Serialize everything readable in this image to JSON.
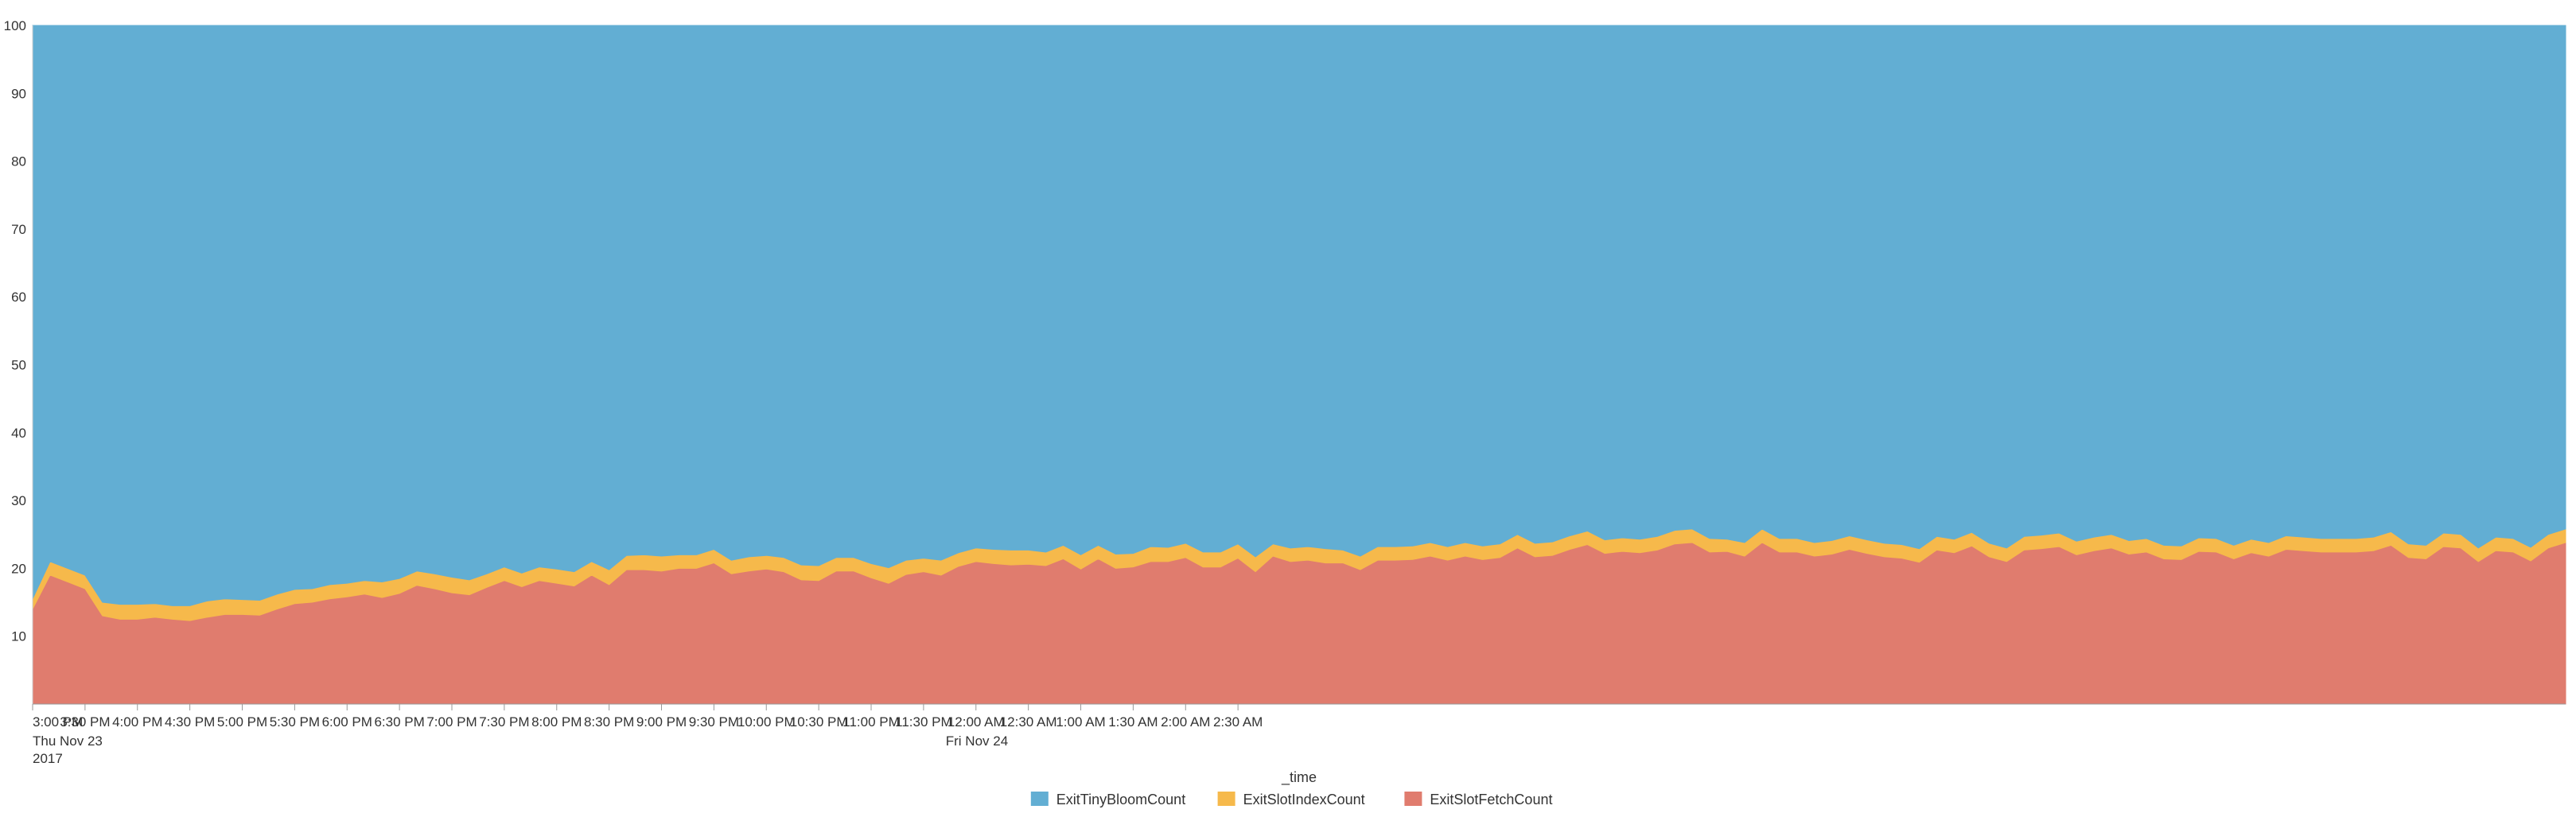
{
  "chart_data": {
    "type": "area",
    "stacked": true,
    "stack_mode": "percent",
    "title": "",
    "xlabel": "_time",
    "ylabel": "",
    "ylim": [
      0,
      100
    ],
    "yticks": [
      "10",
      "20",
      "30",
      "40",
      "50",
      "60",
      "70",
      "80",
      "90",
      "100"
    ],
    "grid": false,
    "legend_position": "bottom",
    "x_start": "3:00 PM Thu Nov 23 2017",
    "x_interval": "10 minutes",
    "xticks": [
      {
        "label": "3:00 PM",
        "sub": [
          "Thu Nov 23",
          "2017"
        ]
      },
      {
        "label": "3:30 PM",
        "sub": []
      },
      {
        "label": "4:00 PM",
        "sub": []
      },
      {
        "label": "4:30 PM",
        "sub": []
      },
      {
        "label": "5:00 PM",
        "sub": []
      },
      {
        "label": "5:30 PM",
        "sub": []
      },
      {
        "label": "6:00 PM",
        "sub": []
      },
      {
        "label": "6:30 PM",
        "sub": []
      },
      {
        "label": "7:00 PM",
        "sub": []
      },
      {
        "label": "7:30 PM",
        "sub": []
      },
      {
        "label": "8:00 PM",
        "sub": []
      },
      {
        "label": "8:30 PM",
        "sub": []
      },
      {
        "label": "9:00 PM",
        "sub": []
      },
      {
        "label": "9:30 PM",
        "sub": []
      },
      {
        "label": "10:00 PM",
        "sub": []
      },
      {
        "label": "10:30 PM",
        "sub": []
      },
      {
        "label": "11:00 PM",
        "sub": []
      },
      {
        "label": "11:30 PM",
        "sub": []
      },
      {
        "label": "12:00 AM",
        "sub": [
          "Fri Nov 24"
        ]
      },
      {
        "label": "12:30 AM",
        "sub": []
      },
      {
        "label": "1:00 AM",
        "sub": []
      },
      {
        "label": "1:30 AM",
        "sub": []
      },
      {
        "label": "2:00 AM",
        "sub": []
      },
      {
        "label": "2:30 AM",
        "sub": []
      }
    ],
    "series": [
      {
        "name": "ExitSlotFetchCount",
        "color": "#e07c6e",
        "values": [
          14,
          19,
          18,
          17,
          13,
          12.5,
          12.5,
          12.8,
          12.5,
          12.3,
          12.8,
          13.2,
          13.2,
          13.1,
          14,
          14.8,
          15,
          15.5,
          15.8,
          16.2,
          15.7,
          16.3,
          17.5,
          17,
          16.4,
          16.1,
          17.2,
          18.2,
          17.3,
          18.2,
          17.8,
          17.4,
          19,
          17.6,
          19.8,
          19.8,
          19.6,
          20,
          20,
          20.8,
          19.2,
          19.6,
          19.9,
          19.5,
          18.3,
          18.2,
          19.6,
          19.6,
          18.6,
          17.8,
          19.1,
          19.5,
          19,
          20.3,
          21,
          20.7,
          20.5,
          20.6,
          20.4,
          21.4,
          19.9,
          21.4,
          20,
          20.2,
          21,
          21,
          21.6,
          20.2,
          20.2,
          21.5,
          19.5,
          21.8,
          21,
          21.2,
          20.8,
          20.8,
          19.8,
          21.2,
          21.2,
          21.3,
          21.8,
          21.2,
          21.8,
          21.3,
          21.6,
          23,
          21.7,
          21.9,
          22.8,
          23.5,
          22.2,
          22.5,
          22.3,
          22.7,
          23.6,
          23.8,
          22.4,
          22.5,
          21.8,
          23.8,
          22.4,
          22.4,
          21.8,
          22.1,
          22.8,
          22.2,
          21.7,
          21.5,
          20.9,
          22.7,
          22.3,
          23.3,
          21.7,
          21,
          22.7,
          22.9,
          23.2,
          22,
          22.6,
          23,
          22.1,
          22.4,
          21.4,
          21.3,
          22.5,
          22.4,
          21.4,
          22.3,
          21.8,
          22.8,
          22.6,
          22.4,
          22.4,
          22.4,
          22.6,
          23.4,
          21.6,
          21.4,
          23.2,
          23,
          21,
          22.6,
          22.4,
          21.1,
          23,
          23.8
        ]
      },
      {
        "name": "ExitSlotIndexCount",
        "color": "#f6b94b",
        "values": [
          1.5,
          2,
          2,
          2,
          2,
          2.2,
          2.2,
          2,
          2,
          2.2,
          2.4,
          2.3,
          2.2,
          2.2,
          2.2,
          2.1,
          2,
          2.1,
          2,
          2,
          2.3,
          2.2,
          2.1,
          2.2,
          2.3,
          2.2,
          2,
          2,
          2,
          2,
          2.1,
          2.1,
          2,
          2.2,
          2.1,
          2.2,
          2.2,
          2,
          2,
          2,
          2,
          2.1,
          2,
          2.1,
          2.2,
          2.2,
          2,
          2,
          2.1,
          2.3,
          2.1,
          2,
          2.2,
          2,
          2,
          2.1,
          2.2,
          2.1,
          2,
          2,
          2.1,
          2,
          2.1,
          2,
          2.2,
          2.1,
          2.1,
          2.2,
          2.2,
          2.1,
          2.2,
          1.8,
          2,
          2,
          2.1,
          1.9,
          2,
          2,
          2,
          2,
          2,
          2,
          2,
          2,
          2,
          2,
          2,
          2,
          2,
          2,
          2,
          2,
          2,
          2,
          2,
          2,
          2,
          1.8,
          2,
          2,
          2,
          2,
          2,
          2,
          2,
          2,
          2,
          2,
          2,
          2,
          2,
          2,
          2,
          2,
          2,
          2,
          2,
          2,
          2,
          2,
          2,
          2,
          2,
          2,
          2,
          2,
          2,
          2,
          2,
          2,
          2,
          2,
          2,
          2,
          2,
          2,
          2,
          2,
          2,
          2,
          2,
          2,
          2,
          2,
          2,
          2
        ]
      },
      {
        "name": "ExitTinyBloomCount",
        "color": "#62aed3",
        "values": [
          84.5,
          79,
          80,
          81,
          85,
          85.3,
          85.3,
          85.2,
          85.5,
          85.5,
          84.8,
          84.5,
          84.6,
          84.7,
          83.8,
          83.1,
          83,
          82.4,
          82.2,
          81.8,
          82,
          81.5,
          80.4,
          80.8,
          81.3,
          81.7,
          80.8,
          79.8,
          80.7,
          79.8,
          80.1,
          80.5,
          79,
          80.2,
          78.1,
          78,
          78.2,
          78,
          78,
          77.2,
          78.8,
          78.3,
          78.1,
          78.4,
          79.5,
          79.6,
          78.4,
          78.4,
          79.3,
          79.9,
          78.8,
          78.5,
          78.8,
          77.7,
          77,
          77.2,
          77.3,
          77.3,
          77.6,
          76.6,
          78,
          76.6,
          77.9,
          77.8,
          76.8,
          76.9,
          76.3,
          77.6,
          77.6,
          76.4,
          78.3,
          76.4,
          77,
          76.8,
          77.1,
          77.3,
          78.2,
          76.8,
          76.8,
          76.7,
          76.2,
          76.8,
          76.2,
          76.7,
          76.4,
          75,
          76.3,
          76.1,
          75.2,
          74.5,
          75.8,
          75.5,
          75.7,
          75.3,
          74.4,
          74.2,
          75.6,
          75.7,
          76.2,
          74.2,
          75.6,
          75.6,
          76.2,
          75.9,
          75.2,
          75.8,
          76.3,
          76.5,
          77.1,
          75.3,
          75.7,
          74.7,
          76.3,
          77,
          75.3,
          75.1,
          74.8,
          76,
          75.4,
          75,
          75.9,
          75.6,
          76.6,
          76.7,
          75.5,
          75.6,
          76.6,
          75.7,
          76.2,
          75.2,
          75.4,
          75.6,
          75.6,
          75.6,
          75.4,
          74.6,
          76.4,
          76.6,
          74.8,
          75,
          77,
          75.4,
          75.6,
          76.9,
          75,
          74.2
        ]
      }
    ],
    "legend": [
      "ExitTinyBloomCount",
      "ExitSlotIndexCount",
      "ExitSlotFetchCount"
    ]
  }
}
